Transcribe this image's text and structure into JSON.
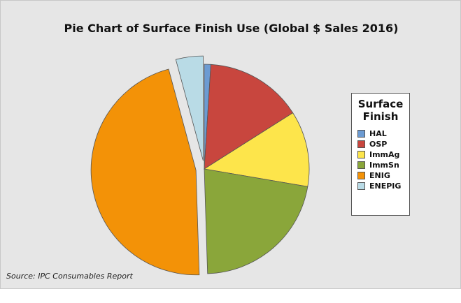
{
  "title": "Pie Chart of Surface Finish Use (Global $ Sales 2016)",
  "source": "Source: IPC Consumables Report",
  "legend": {
    "title_line1": "Surface",
    "title_line2": "Finish"
  },
  "chart_data": {
    "type": "pie",
    "title": "Pie Chart of Surface Finish Use (Global $ Sales 2016)",
    "legend_title": "Surface Finish",
    "legend_position": "right",
    "start_angle": "12 o'clock, clockwise",
    "exploded": [
      "ENIG",
      "ENEPIG"
    ],
    "slices": [
      {
        "label": "HAL",
        "value": 1.0,
        "color": "#6c9bd2"
      },
      {
        "label": "OSP",
        "value": 15.0,
        "color": "#c8463e"
      },
      {
        "label": "ImmAg",
        "value": 11.7,
        "color": "#fde54b"
      },
      {
        "label": "ImmSn",
        "value": 21.8,
        "color": "#8aa63a"
      },
      {
        "label": "ENIG",
        "value": 46.3,
        "color": "#f39207"
      },
      {
        "label": "ENEPIG",
        "value": 4.2,
        "color": "#b9dbe6"
      }
    ]
  }
}
